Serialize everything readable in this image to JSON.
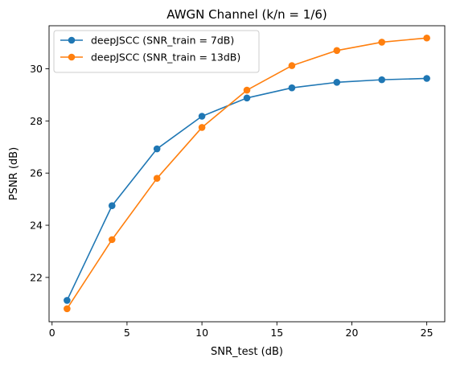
{
  "chart_data": {
    "type": "line",
    "title": "AWGN Channel (k/n = 1/6)",
    "xlabel": "SNR_test (dB)",
    "ylabel": "PSNR (dB)",
    "x": [
      1,
      4,
      7,
      10,
      13,
      16,
      19,
      22,
      25
    ],
    "xlim": [
      -0.2,
      26.2
    ],
    "ylim": [
      20.3,
      31.65
    ],
    "xticks": [
      0,
      5,
      10,
      15,
      20,
      25
    ],
    "yticks": [
      22,
      24,
      26,
      28,
      30
    ],
    "grid": false,
    "legend_position": "upper-left",
    "series": [
      {
        "name": "deepJSCC (SNR_train = 7dB)",
        "color": "#1f77b4",
        "marker": "circle",
        "values": [
          21.12,
          24.75,
          26.93,
          28.18,
          28.88,
          29.27,
          29.48,
          29.58,
          29.63
        ]
      },
      {
        "name": "deepJSCC (SNR_train = 13dB)",
        "color": "#ff7f0e",
        "marker": "circle",
        "values": [
          20.8,
          23.45,
          25.8,
          27.75,
          29.18,
          30.12,
          30.7,
          31.02,
          31.18
        ]
      }
    ]
  }
}
